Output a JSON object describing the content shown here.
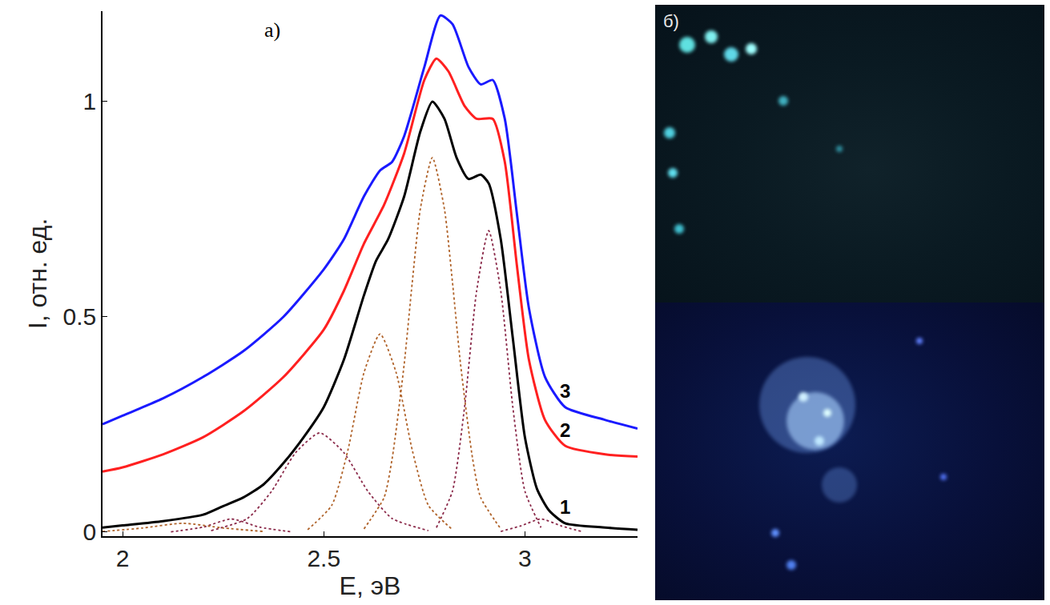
{
  "chart_data": {
    "type": "line",
    "title": "а)",
    "x_label": "E, эВ",
    "y_label": "I, отн. ед.",
    "xlim": [
      1.95,
      3.28
    ],
    "ylim": [
      -0.01,
      1.21
    ],
    "xticks": [
      2,
      2.5,
      3
    ],
    "yticks": [
      0,
      0.5,
      1
    ],
    "grid": false,
    "series": [
      {
        "name": "1",
        "color": "#000000",
        "line_style": "solid",
        "x": [
          1.95,
          2.0,
          2.1,
          2.2,
          2.25,
          2.3,
          2.35,
          2.4,
          2.45,
          2.5,
          2.55,
          2.6,
          2.63,
          2.66,
          2.7,
          2.74,
          2.77,
          2.8,
          2.83,
          2.86,
          2.89,
          2.91,
          2.94,
          2.97,
          3.0,
          3.03,
          3.06,
          3.1,
          3.2,
          3.28
        ],
        "values": [
          0.01,
          0.015,
          0.025,
          0.04,
          0.06,
          0.08,
          0.11,
          0.16,
          0.22,
          0.29,
          0.4,
          0.55,
          0.63,
          0.68,
          0.78,
          0.93,
          1.0,
          0.96,
          0.87,
          0.82,
          0.83,
          0.81,
          0.68,
          0.45,
          0.22,
          0.1,
          0.05,
          0.02,
          0.01,
          0.005
        ]
      },
      {
        "name": "2",
        "color": "#ff2020",
        "line_style": "solid",
        "x": [
          1.95,
          2.0,
          2.1,
          2.2,
          2.3,
          2.4,
          2.5,
          2.55,
          2.6,
          2.65,
          2.7,
          2.75,
          2.78,
          2.81,
          2.85,
          2.88,
          2.92,
          2.95,
          2.98,
          3.01,
          3.05,
          3.1,
          3.2,
          3.28
        ],
        "values": [
          0.14,
          0.15,
          0.18,
          0.22,
          0.28,
          0.36,
          0.47,
          0.56,
          0.67,
          0.76,
          0.88,
          1.05,
          1.1,
          1.07,
          0.99,
          0.96,
          0.96,
          0.86,
          0.62,
          0.4,
          0.26,
          0.2,
          0.18,
          0.175
        ]
      },
      {
        "name": "3",
        "color": "#1a1aff",
        "line_style": "solid",
        "x": [
          1.95,
          2.0,
          2.1,
          2.2,
          2.3,
          2.4,
          2.5,
          2.55,
          2.6,
          2.64,
          2.67,
          2.7,
          2.75,
          2.79,
          2.82,
          2.86,
          2.89,
          2.92,
          2.95,
          2.98,
          3.01,
          3.05,
          3.1,
          3.2,
          3.28
        ],
        "values": [
          0.25,
          0.27,
          0.31,
          0.36,
          0.42,
          0.5,
          0.61,
          0.68,
          0.78,
          0.84,
          0.86,
          0.92,
          1.08,
          1.2,
          1.18,
          1.08,
          1.04,
          1.05,
          0.96,
          0.74,
          0.52,
          0.36,
          0.29,
          0.26,
          0.24
        ]
      },
      {
        "color": "#b0632a",
        "line_style": "dot",
        "x": [
          2.6,
          2.65,
          2.67,
          2.7,
          2.72,
          2.74,
          2.77,
          2.8,
          2.82,
          2.84,
          2.87,
          2.89,
          2.94
        ],
        "values": [
          0.007,
          0.08,
          0.17,
          0.39,
          0.58,
          0.75,
          0.87,
          0.75,
          0.58,
          0.39,
          0.17,
          0.08,
          0.007
        ]
      },
      {
        "color": "#8b2a4a",
        "line_style": "dot",
        "x": [
          2.78,
          2.82,
          2.85,
          2.88,
          2.91,
          2.94,
          2.97,
          3.0,
          3.04
        ],
        "values": [
          0.01,
          0.095,
          0.29,
          0.56,
          0.7,
          0.56,
          0.29,
          0.095,
          0.01
        ]
      },
      {
        "color": "#b0632a",
        "line_style": "dot",
        "x": [
          2.46,
          2.52,
          2.56,
          2.6,
          2.64,
          2.68,
          2.72,
          2.76,
          2.82
        ],
        "values": [
          0.005,
          0.062,
          0.19,
          0.37,
          0.46,
          0.37,
          0.19,
          0.062,
          0.005
        ]
      },
      {
        "color": "#8b2a4a",
        "line_style": "dot",
        "x": [
          2.22,
          2.31,
          2.37,
          2.43,
          2.49,
          2.55,
          2.61,
          2.67,
          2.76
        ],
        "values": [
          0.003,
          0.031,
          0.094,
          0.184,
          0.23,
          0.184,
          0.094,
          0.031,
          0.003
        ]
      },
      {
        "color": "#8b2a4a",
        "line_style": "dot",
        "x": [
          2.12,
          2.2,
          2.27,
          2.34,
          2.42
        ],
        "values": [
          0.0,
          0.011,
          0.03,
          0.011,
          0.0
        ]
      },
      {
        "color": "#8b2a4a",
        "line_style": "dot",
        "x": [
          2.94,
          2.99,
          3.04,
          3.09,
          3.14
        ],
        "values": [
          0.001,
          0.014,
          0.03,
          0.014,
          0.001
        ]
      },
      {
        "color": "#b0632a",
        "line_style": "dot",
        "x": [
          1.95,
          2.05,
          2.15,
          2.25,
          2.35
        ],
        "values": [
          0.001,
          0.009,
          0.02,
          0.009,
          0.001
        ]
      }
    ]
  },
  "photo_panel": {
    "label": "б)"
  }
}
